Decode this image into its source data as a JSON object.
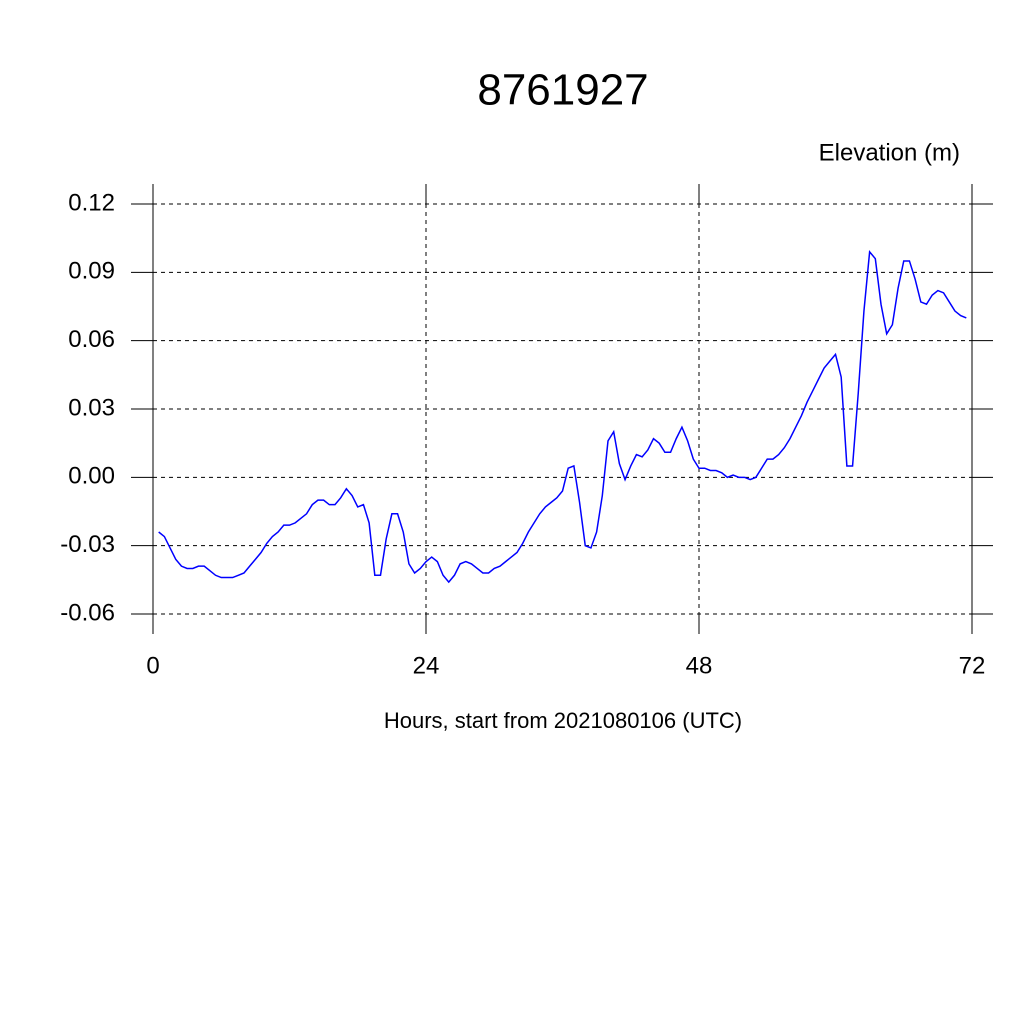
{
  "chart_data": {
    "type": "line",
    "title": "8761927",
    "y_label": "Elevation (m)",
    "x_label": "Hours, start from 2021080106 (UTC)",
    "x": [
      0.5,
      1,
      1.5,
      2,
      2.5,
      3,
      3.5,
      4,
      4.5,
      5,
      5.5,
      6,
      6.5,
      7,
      7.5,
      8,
      8.5,
      9,
      9.5,
      10,
      10.5,
      11,
      11.5,
      12,
      12.5,
      13,
      13.5,
      14,
      14.5,
      15,
      15.5,
      16,
      16.5,
      17,
      17.5,
      18,
      18.5,
      19,
      19.5,
      20,
      20.5,
      21,
      21.5,
      22,
      22.5,
      23,
      23.5,
      24,
      24.5,
      25,
      25.5,
      26,
      26.5,
      27,
      27.5,
      28,
      28.5,
      29,
      29.5,
      30,
      30.5,
      31,
      31.5,
      32,
      32.5,
      33,
      33.5,
      34,
      34.5,
      35,
      35.5,
      36,
      36.5,
      37,
      37.5,
      38,
      38.5,
      39,
      39.5,
      40,
      40.5,
      41,
      41.5,
      42,
      42.5,
      43,
      43.5,
      44,
      44.5,
      45,
      45.5,
      46,
      46.5,
      47,
      47.5,
      48,
      48.5,
      49,
      49.5,
      50,
      50.5,
      51,
      51.5,
      52,
      52.5,
      53,
      53.5,
      54,
      54.5,
      55,
      55.5,
      56,
      56.5,
      57,
      57.5,
      58,
      58.5,
      59,
      59.5,
      60,
      60.5,
      61,
      61.5,
      62,
      62.5,
      63,
      63.5,
      64,
      64.5,
      65,
      65.5,
      66,
      66.5,
      67,
      67.5,
      68,
      68.5,
      69,
      69.5,
      70,
      70.5,
      71,
      71.5
    ],
    "series": [
      {
        "name": "Elevation",
        "color": "#0000ff",
        "values": [
          -0.024,
          -0.026,
          -0.031,
          -0.036,
          -0.039,
          -0.04,
          -0.04,
          -0.039,
          -0.039,
          -0.041,
          -0.043,
          -0.044,
          -0.044,
          -0.044,
          -0.043,
          -0.042,
          -0.039,
          -0.036,
          -0.033,
          -0.029,
          -0.026,
          -0.024,
          -0.021,
          -0.021,
          -0.02,
          -0.018,
          -0.016,
          -0.012,
          -0.01,
          -0.01,
          -0.012,
          -0.012,
          -0.009,
          -0.005,
          -0.008,
          -0.013,
          -0.012,
          -0.02,
          -0.043,
          -0.043,
          -0.027,
          -0.016,
          -0.016,
          -0.024,
          -0.038,
          -0.042,
          -0.04,
          -0.037,
          -0.035,
          -0.037,
          -0.043,
          -0.046,
          -0.043,
          -0.038,
          -0.037,
          -0.038,
          -0.04,
          -0.042,
          -0.042,
          -0.04,
          -0.039,
          -0.037,
          -0.035,
          -0.033,
          -0.029,
          -0.024,
          -0.02,
          -0.016,
          -0.013,
          -0.011,
          -0.009,
          -0.006,
          0.004,
          0.005,
          -0.011,
          -0.03,
          -0.031,
          -0.024,
          -0.008,
          0.016,
          0.02,
          0.006,
          -0.001,
          0.005,
          0.01,
          0.009,
          0.012,
          0.017,
          0.015,
          0.011,
          0.011,
          0.017,
          0.022,
          0.016,
          0.008,
          0.004,
          0.004,
          0.003,
          0.003,
          0.002,
          0.0,
          0.001,
          0.0,
          0.0,
          -0.001,
          0.0,
          0.004,
          0.008,
          0.008,
          0.01,
          0.013,
          0.017,
          0.022,
          0.027,
          0.033,
          0.038,
          0.043,
          0.048,
          0.051,
          0.054,
          0.044,
          0.005,
          0.005,
          0.037,
          0.073,
          0.099,
          0.096,
          0.076,
          0.063,
          0.067,
          0.083,
          0.095,
          0.095,
          0.087,
          0.077,
          0.076,
          0.08,
          0.082,
          0.081,
          0.077,
          0.073,
          0.071,
          0.07
        ]
      }
    ],
    "xlim": [
      0,
      72
    ],
    "ylim": [
      -0.06,
      0.12
    ],
    "xticks": [
      0,
      24,
      48,
      72
    ],
    "yticks": [
      -0.06,
      -0.03,
      {
        "value": 0,
        "label": "0.00"
      },
      0.03,
      0.06,
      0.09,
      0.12
    ],
    "grid": true
  }
}
